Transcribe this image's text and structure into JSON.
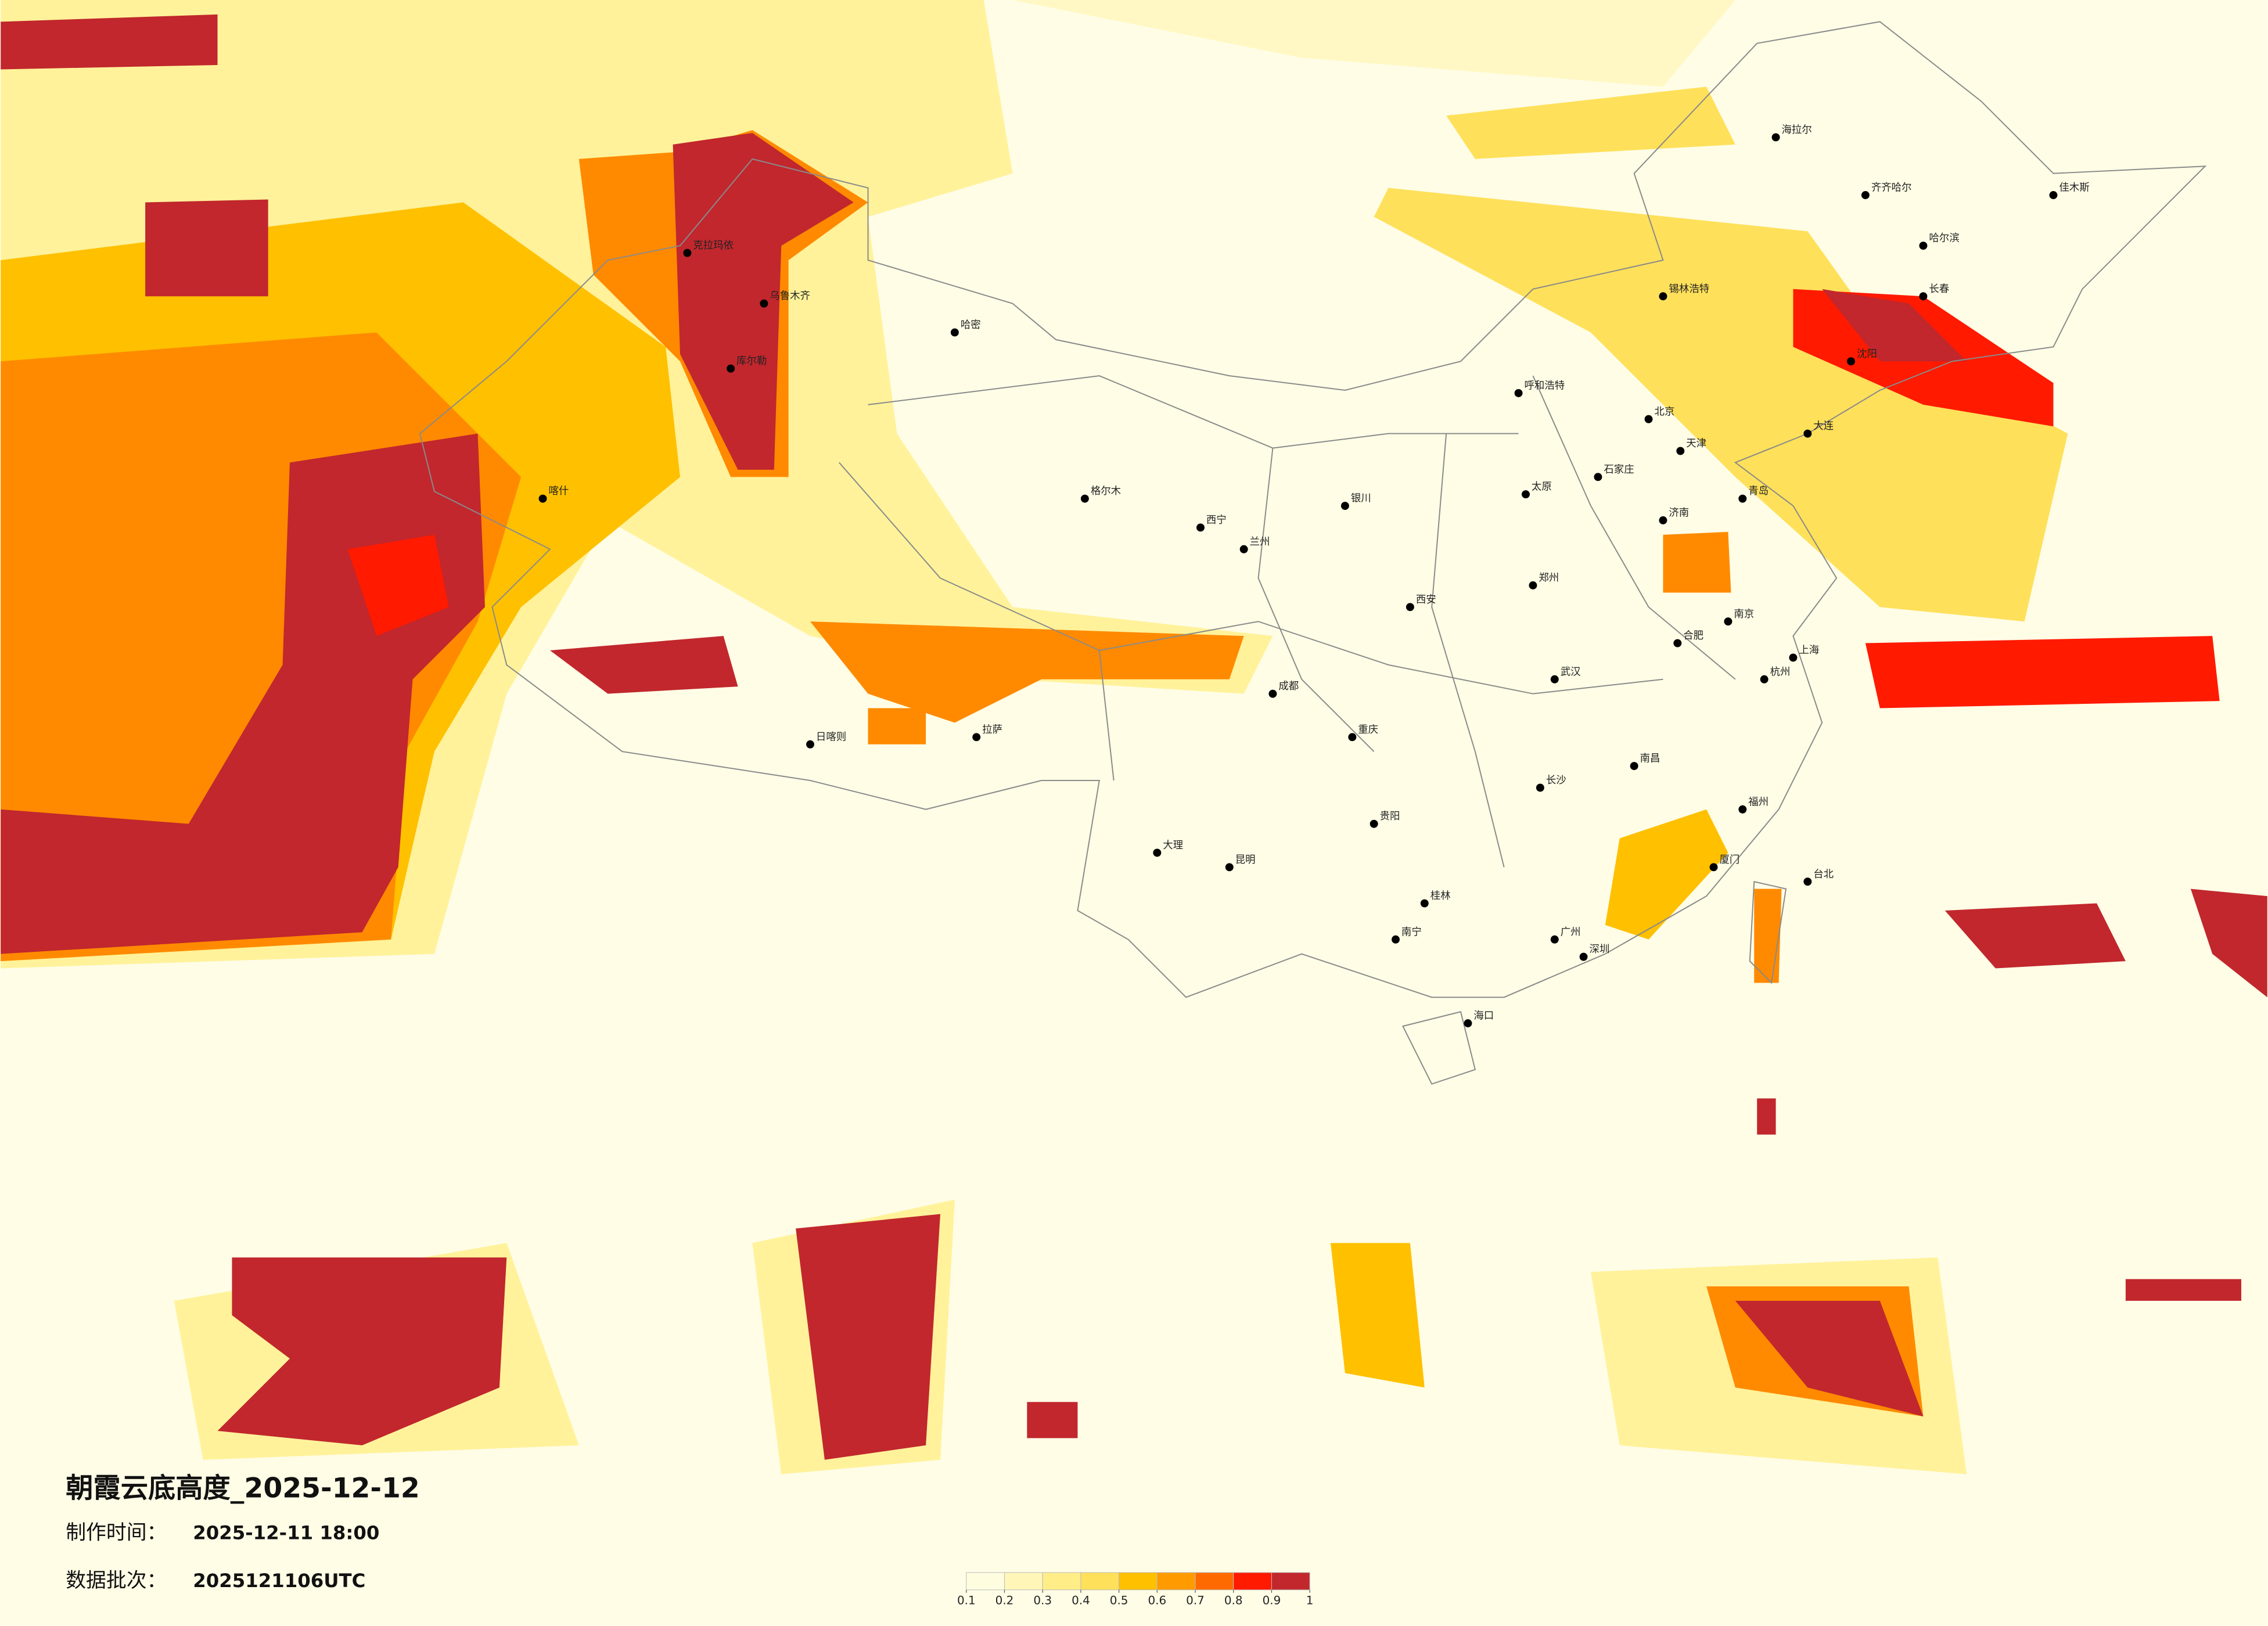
{
  "title": "朝霞云底高度_2025-12-12",
  "made_time_label": "制作时间：",
  "made_time": "2025-12-11 18:00",
  "batch_label": "数据批次：",
  "batch": "2025121106UTC",
  "legend": {
    "colors": [
      "#fffde0",
      "#fff6b8",
      "#ffee88",
      "#ffe05a",
      "#ffc000",
      "#ff9a00",
      "#ff6a00",
      "#ff1a00",
      "#c1272d"
    ],
    "ticks": [
      0.1,
      0.2,
      0.3,
      0.4,
      0.5,
      0.6,
      0.7,
      0.8,
      0.9,
      1
    ]
  },
  "cities": [
    "北京",
    "天津",
    "上海",
    "广州",
    "深圳",
    "重庆",
    "成都",
    "武汉",
    "西安",
    "兰州",
    "乌鲁木齐",
    "拉萨",
    "昆明",
    "贵阳",
    "南宁",
    "海口",
    "哈尔滨",
    "长春",
    "沈阳",
    "呼和浩特",
    "银川",
    "西宁",
    "郑州",
    "济南",
    "南京",
    "杭州",
    "福州",
    "南昌",
    "长沙",
    "合肥",
    "石家庄",
    "太原",
    "台北",
    "齐齐哈尔",
    "克拉玛依",
    "哈密",
    "库尔勒",
    "喀什",
    "日喀则",
    "格尔木",
    "海拉尔",
    "锡林浩特",
    "大连",
    "青岛",
    "厦门",
    "桂林",
    "大理",
    "佳木斯"
  ]
}
